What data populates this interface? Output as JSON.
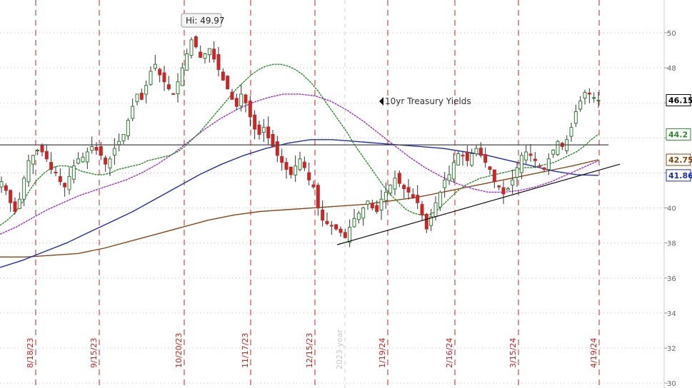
{
  "chart_data": {
    "type": "candlestick",
    "title": "",
    "annotation": "10yr Treasury Yields",
    "hi_label": "Hi: 49.97",
    "year_label": "2023 year",
    "ylim": [
      30,
      51
    ],
    "y_ticks": [
      30,
      32,
      34,
      36,
      38,
      40,
      42,
      44,
      46,
      48,
      50
    ],
    "x_dates": [
      "8/18/23",
      "9/15/23",
      "10/20/23",
      "11/17/23",
      "12/15/23",
      "1/19/24",
      "2/16/24",
      "3/15/24",
      "4/19/24"
    ],
    "horizontal_level": 43.6,
    "price_labels": [
      {
        "value": "46.15",
        "y": 46.15,
        "color": "#000000"
      },
      {
        "value": "44.2",
        "y": 44.2,
        "color": "#2e8b2e"
      },
      {
        "value": "42.75",
        "y": 42.75,
        "color": "#8b4513"
      },
      {
        "value": "41.86",
        "y": 41.86,
        "color": "#1f2db8"
      }
    ],
    "close_series": [
      41.5,
      41.0,
      40.3,
      39.8,
      40.5,
      41.7,
      42.7,
      43.0,
      43.3,
      43.2,
      42.8,
      42.2,
      42.0,
      41.5,
      41.2,
      41.8,
      42.4,
      42.8,
      42.9,
      43.2,
      43.5,
      43.3,
      43.0,
      42.5,
      42.8,
      43.4,
      43.8,
      44.2,
      45.0,
      45.8,
      46.5,
      46.2,
      47.0,
      47.8,
      48.2,
      47.6,
      47.2,
      46.8,
      46.5,
      47.2,
      48.0,
      48.8,
      49.6,
      49.2,
      48.6,
      48.8,
      49.1,
      48.5,
      47.9,
      47.3,
      46.8,
      46.2,
      45.8,
      46.5,
      46.0,
      45.2,
      44.5,
      44.2,
      44.6,
      44.0,
      43.5,
      43.0,
      42.6,
      42.2,
      41.9,
      42.4,
      42.8,
      42.3,
      41.6,
      41.2,
      40.0,
      39.3,
      39.1,
      39.0,
      38.8,
      38.6,
      38.3,
      38.9,
      39.4,
      39.7,
      40.0,
      40.4,
      40.0,
      39.8,
      40.5,
      40.9,
      41.3,
      41.7,
      41.4,
      41.1,
      40.9,
      40.6,
      40.3,
      39.6,
      38.8,
      39.5,
      40.3,
      40.9,
      41.6,
      41.9,
      42.6,
      43.1,
      43.0,
      42.7,
      43.1,
      43.4,
      43.0,
      42.6,
      42.2,
      41.5,
      41.2,
      40.8,
      41.1,
      41.6,
      42.3,
      43.0,
      43.2,
      43.0,
      42.7,
      42.4,
      42.2,
      42.8,
      43.3,
      43.8,
      43.5,
      43.9,
      44.6,
      45.5,
      46.1,
      46.6,
      46.5,
      46.3,
      46.15
    ],
    "ma_fast": [
      39.0,
      39.3,
      39.7,
      40.3,
      41.0,
      41.6,
      42.0,
      42.3,
      42.4,
      42.4,
      42.3,
      42.1,
      42.0,
      41.9,
      41.9,
      42.0,
      42.2,
      42.3,
      42.4,
      42.5,
      42.7,
      42.8,
      42.9,
      43.0,
      43.2,
      43.5,
      43.9,
      44.3,
      44.8,
      45.3,
      45.8,
      46.3,
      46.8,
      47.2,
      47.6,
      47.9,
      48.1,
      48.2,
      48.2,
      48.1,
      47.9,
      47.6,
      47.2,
      46.7,
      46.1,
      45.5,
      44.9,
      44.3,
      43.6,
      43.0,
      42.4,
      41.8,
      41.2,
      40.7,
      40.3,
      39.9,
      39.7,
      39.6,
      39.6,
      39.8,
      40.2,
      40.6,
      41.0,
      41.3,
      41.5,
      41.7,
      41.8,
      41.9,
      42.0,
      42.1,
      42.2,
      42.3,
      42.3,
      42.4,
      42.5,
      42.6,
      42.8,
      43.0,
      43.2,
      43.5,
      43.9,
      44.2
    ],
    "ma_mid": [
      38.5,
      38.9,
      39.4,
      39.9,
      40.3,
      40.7,
      41.0,
      41.3,
      41.6,
      42.0,
      42.5,
      43.1,
      43.8,
      44.5,
      45.1,
      45.6,
      46.0,
      46.3,
      46.5,
      46.5,
      46.4,
      46.1,
      45.6,
      45.0,
      44.3,
      43.6,
      42.9,
      42.3,
      41.8,
      41.4,
      41.1,
      40.9,
      40.9,
      41.0,
      41.2,
      41.5,
      41.9,
      42.3,
      42.7
    ],
    "ma_slow": [
      36.6,
      37.0,
      37.5,
      38.0,
      38.6,
      39.2,
      39.8,
      40.5,
      41.2,
      41.9,
      42.5,
      43.0,
      43.4,
      43.7,
      43.9,
      43.9,
      43.8,
      43.7,
      43.6,
      43.5,
      43.4,
      43.2,
      43.0,
      42.7,
      42.4,
      42.1,
      41.9,
      41.86
    ],
    "ma_long": [
      37.2,
      37.2,
      37.3,
      37.4,
      37.7,
      38.1,
      38.5,
      38.9,
      39.3,
      39.6,
      39.8,
      39.9,
      40.0,
      40.1,
      40.2,
      40.4,
      40.6,
      40.9,
      41.2,
      41.5,
      41.8,
      42.1,
      42.4,
      42.75
    ],
    "trendline": {
      "from": [
        "12/22/23",
        37.9
      ],
      "to": [
        "4/26/24",
        42.5
      ]
    }
  }
}
